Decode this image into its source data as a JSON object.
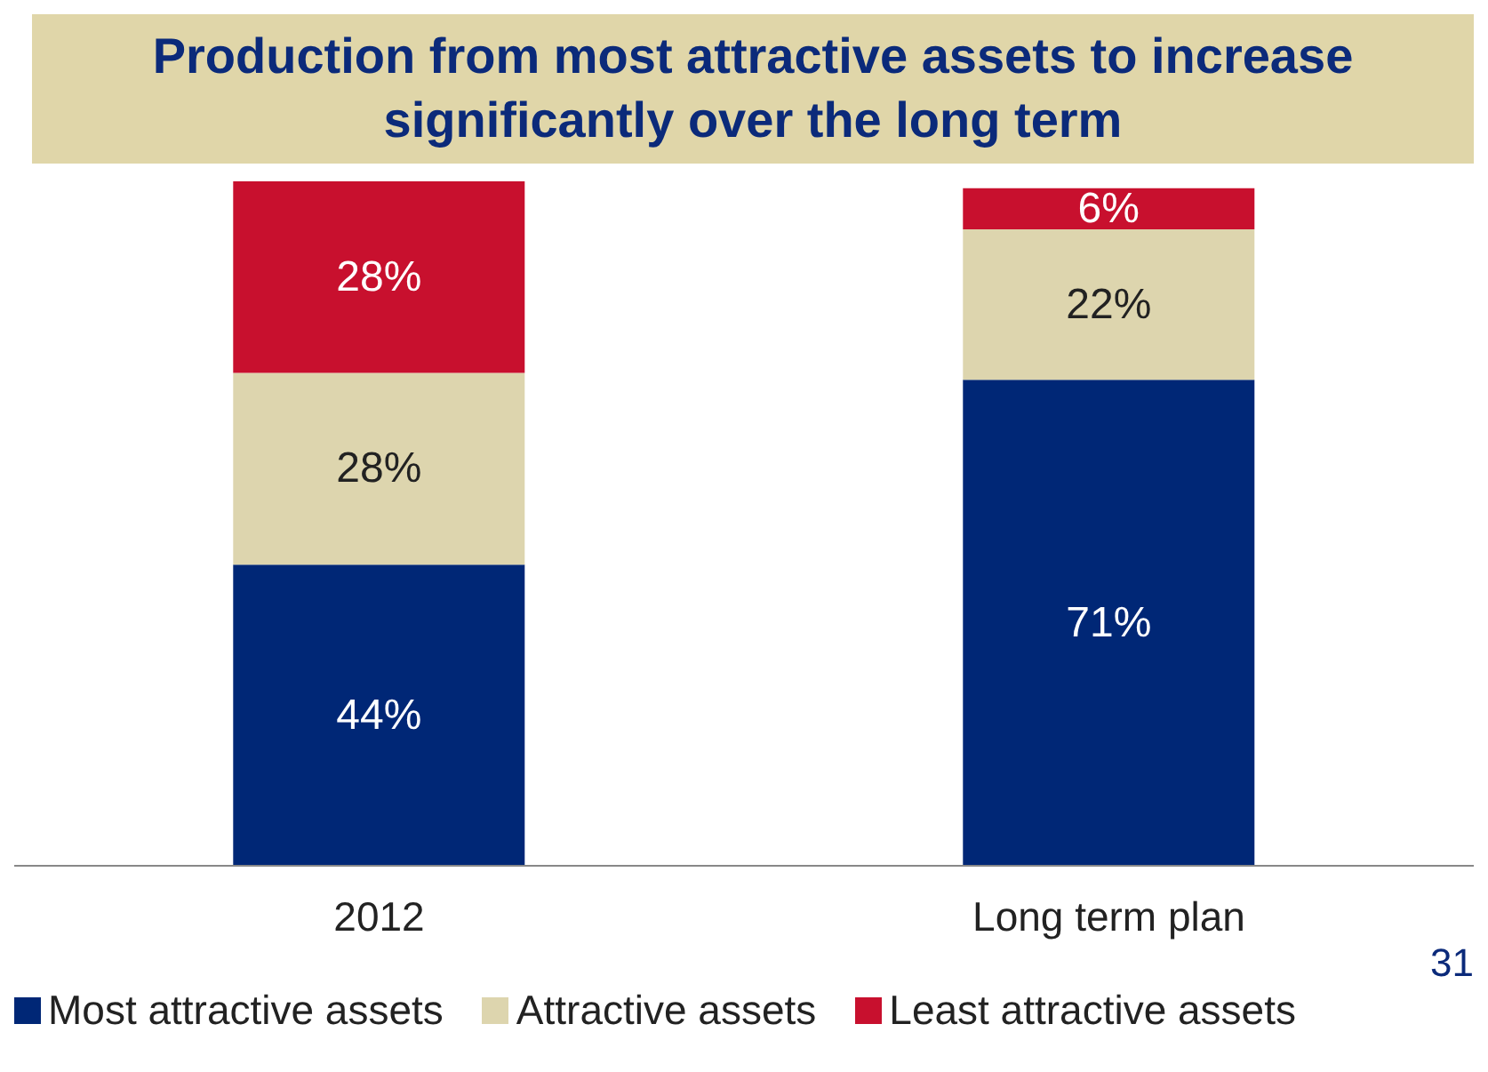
{
  "chart_data": {
    "type": "bar",
    "title": "Production from most attractive assets to increase significantly over the long term",
    "categories": [
      "2012",
      "Long term plan"
    ],
    "stacked": true,
    "legend": "bottom",
    "annotations": [
      "31"
    ],
    "series": [
      {
        "name": "Most attractive assets",
        "color": "#002776",
        "values": [
          44,
          71
        ],
        "value_labels": [
          "44%",
          "71%"
        ]
      },
      {
        "name": "Attractive assets",
        "color": "#ddd5ae",
        "values": [
          28,
          22
        ],
        "value_labels": [
          "28%",
          "22%"
        ]
      },
      {
        "name": "Least attractive assets",
        "color": "#c8102e",
        "values": [
          28,
          6
        ],
        "value_labels": [
          "28%",
          "6%"
        ]
      }
    ]
  }
}
